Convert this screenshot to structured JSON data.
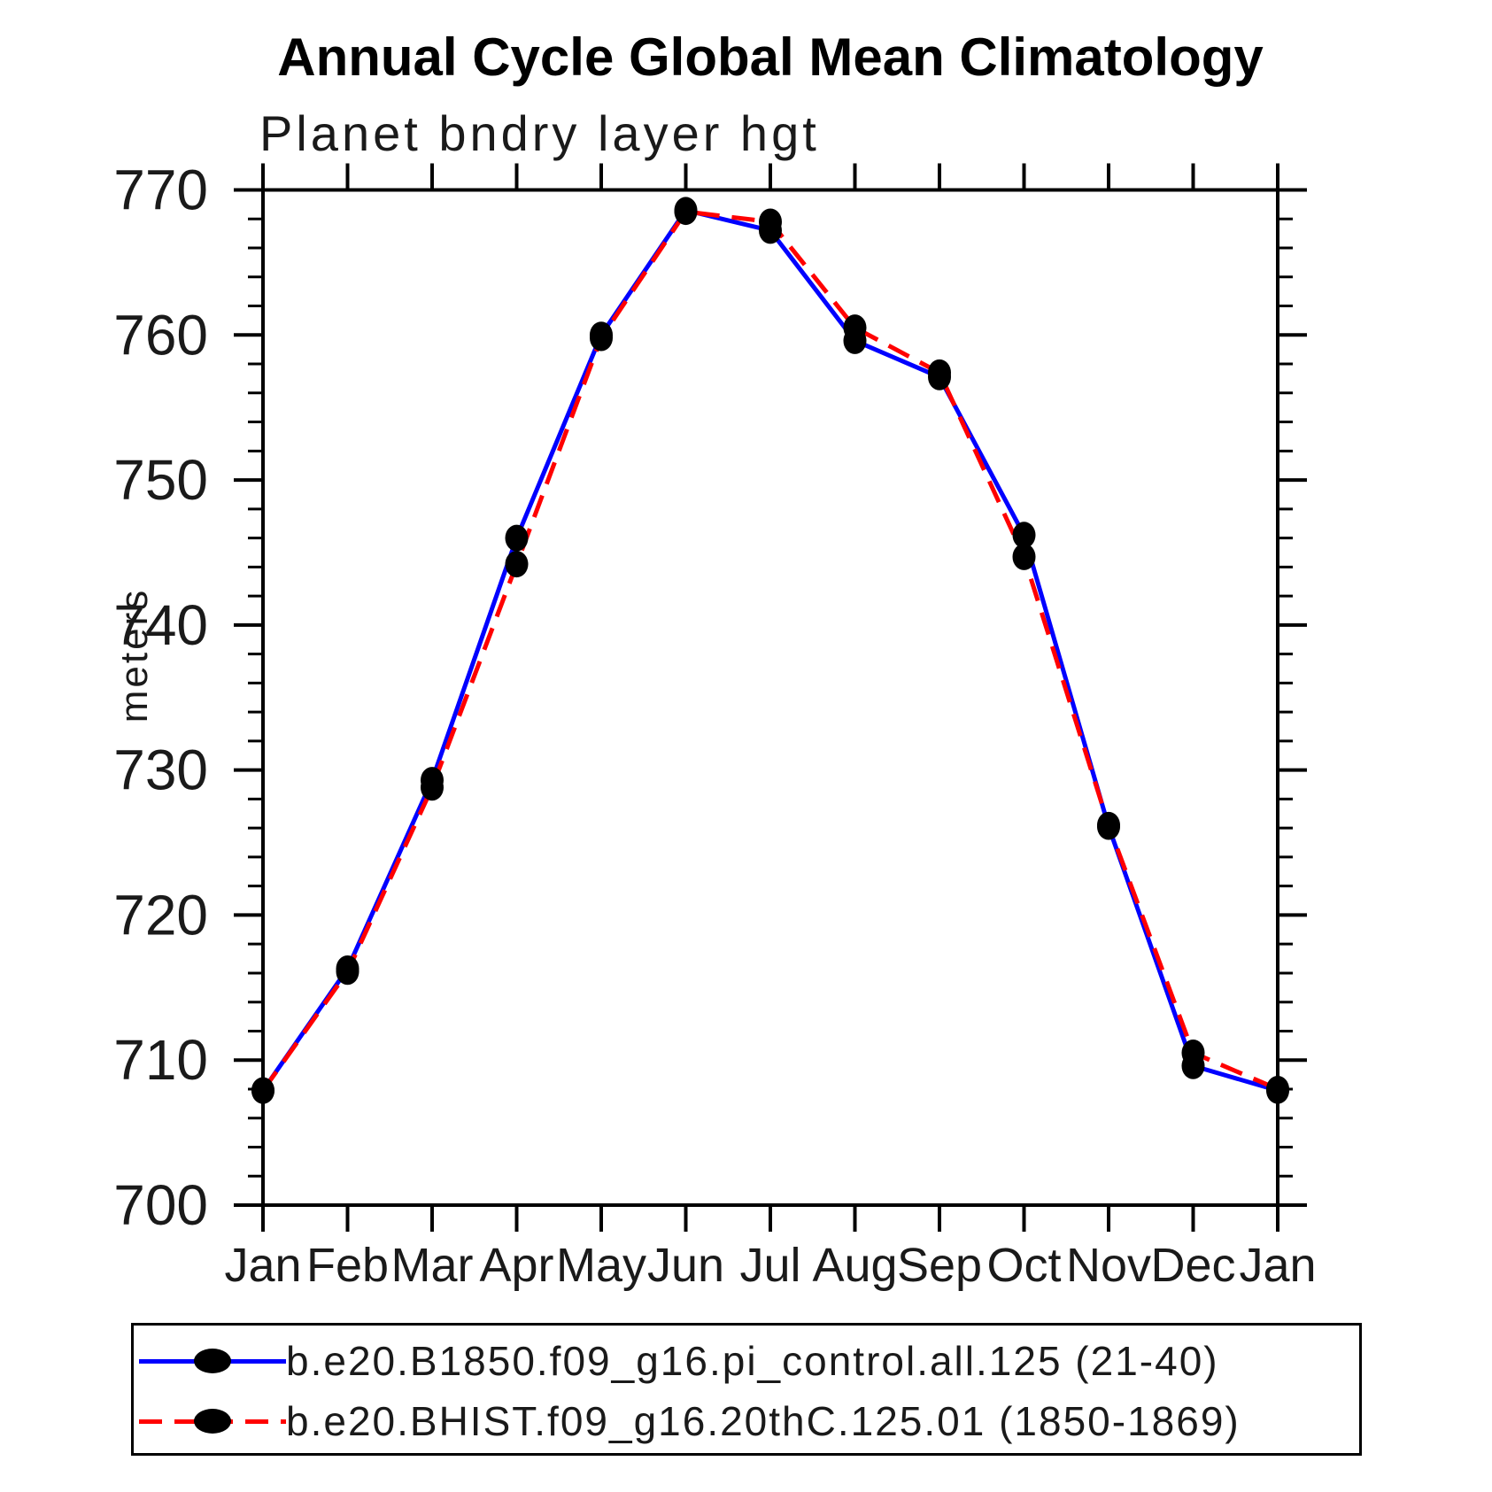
{
  "chart_data": {
    "type": "line",
    "title": "Annual Cycle Global Mean Climatology",
    "subtitle": "Planet bndry layer hgt",
    "ylabel": "meters",
    "xlabel": "",
    "x_categories": [
      "Jan",
      "Feb",
      "Mar",
      "Apr",
      "May",
      "Jun",
      "Jul",
      "Aug",
      "Sep",
      "Oct",
      "Nov",
      "Dec",
      "Jan"
    ],
    "ylim": [
      700,
      770
    ],
    "ytick_major": 10,
    "ytick_minor": 2,
    "grid": "off",
    "legend_position": "bottom",
    "frame_color": "#000000",
    "marker_color": "#000000",
    "series": [
      {
        "name": "b.e20.B1850.f09_g16.pi_control.all.125 (21-40)",
        "color": "#0000ff",
        "style": "solid",
        "marker": "filled-circle",
        "values": [
          707.9,
          716.3,
          729.3,
          746.0,
          760.0,
          768.6,
          767.2,
          759.6,
          757.1,
          746.2,
          726.1,
          709.6,
          707.9
        ]
      },
      {
        "name": "b.e20.BHIST.f09_g16.20thC.125.01 (1850-1869)",
        "color": "#ff0000",
        "style": "dashed",
        "marker": "filled-circle",
        "values": [
          707.9,
          716.1,
          728.8,
          744.2,
          759.8,
          768.5,
          767.8,
          760.5,
          757.4,
          744.7,
          726.2,
          710.5,
          708.0
        ]
      }
    ]
  }
}
